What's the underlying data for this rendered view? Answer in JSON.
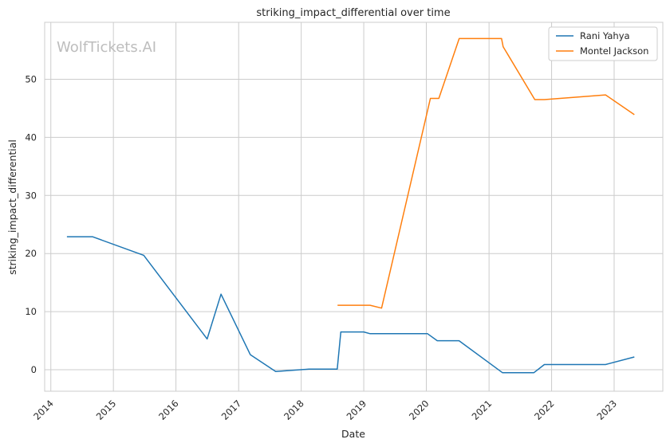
{
  "chart_data": {
    "type": "line",
    "title": "striking_impact_differential over time",
    "xlabel": "Date",
    "ylabel": "striking_impact_differential",
    "watermark": "WolfTickets.AI",
    "x_tick_labels": [
      "2014",
      "2015",
      "2016",
      "2017",
      "2018",
      "2019",
      "2020",
      "2021",
      "2022",
      "2023"
    ],
    "y_tick_labels": [
      "0",
      "10",
      "20",
      "30",
      "40",
      "50"
    ],
    "ylim": [
      -3.7,
      59.8
    ],
    "xlim": [
      "2013-11-26",
      "2023-10-12"
    ],
    "grid": true,
    "legend_position": "top-right",
    "series": [
      {
        "name": "Rani Yahya",
        "color": "#1f77b4",
        "points": [
          {
            "x": "2014-04-05",
            "y": 22.9
          },
          {
            "x": "2014-09-01",
            "y": 22.9
          },
          {
            "x": "2015-06-27",
            "y": 19.7
          },
          {
            "x": "2016-07-01",
            "y": 5.3
          },
          {
            "x": "2016-09-20",
            "y": 13.0
          },
          {
            "x": "2017-03-10",
            "y": 2.6
          },
          {
            "x": "2017-08-05",
            "y": -0.3
          },
          {
            "x": "2018-02-15",
            "y": 0.1
          },
          {
            "x": "2018-07-30",
            "y": 0.1
          },
          {
            "x": "2018-08-20",
            "y": 6.5
          },
          {
            "x": "2019-01-01",
            "y": 6.5
          },
          {
            "x": "2019-02-07",
            "y": 6.2
          },
          {
            "x": "2020-01-08",
            "y": 6.2
          },
          {
            "x": "2020-03-05",
            "y": 5.0
          },
          {
            "x": "2020-07-10",
            "y": 5.0
          },
          {
            "x": "2021-03-20",
            "y": -0.5
          },
          {
            "x": "2021-09-20",
            "y": -0.5
          },
          {
            "x": "2021-11-20",
            "y": 0.9
          },
          {
            "x": "2022-11-12",
            "y": 0.9
          },
          {
            "x": "2023-04-29",
            "y": 2.2
          }
        ]
      },
      {
        "name": "Montel Jackson",
        "color": "#ff7f0e",
        "points": [
          {
            "x": "2018-08-01",
            "y": 11.1
          },
          {
            "x": "2019-02-07",
            "y": 11.1
          },
          {
            "x": "2019-04-15",
            "y": 10.6
          },
          {
            "x": "2020-01-25",
            "y": 46.7
          },
          {
            "x": "2020-03-14",
            "y": 46.7
          },
          {
            "x": "2020-07-11",
            "y": 57.0
          },
          {
            "x": "2021-03-15",
            "y": 57.0
          },
          {
            "x": "2021-03-24",
            "y": 55.6
          },
          {
            "x": "2021-09-25",
            "y": 46.5
          },
          {
            "x": "2021-11-20",
            "y": 46.5
          },
          {
            "x": "2022-11-12",
            "y": 47.3
          },
          {
            "x": "2023-04-29",
            "y": 43.9
          }
        ]
      }
    ]
  },
  "colors": {
    "grid": "#cccccc",
    "frame": "#cccccc",
    "background": "#ffffff"
  }
}
